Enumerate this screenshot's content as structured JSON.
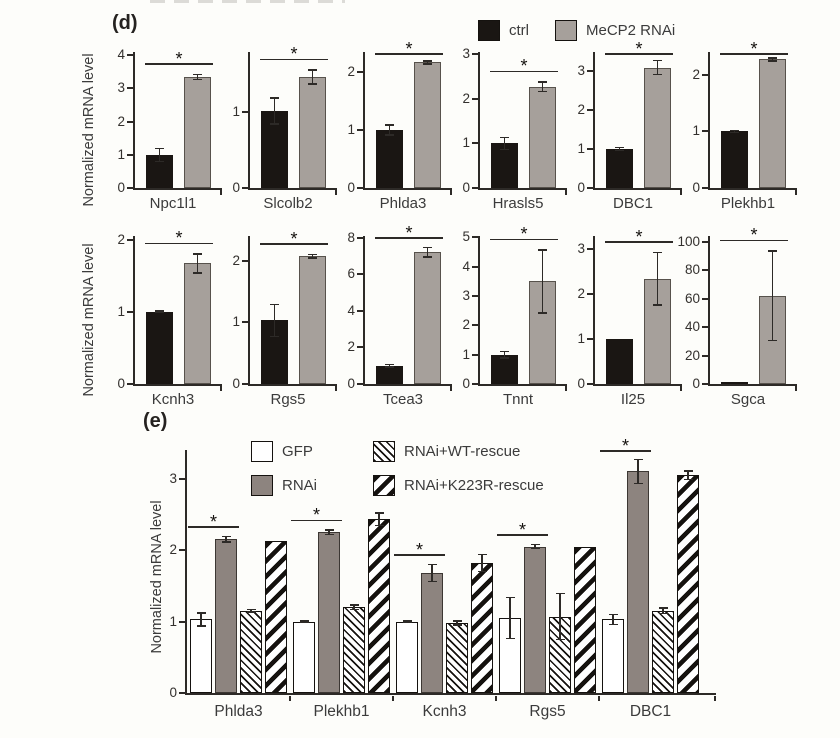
{
  "sig_marker": "*",
  "colors": {
    "black_bar": "#1a1613",
    "gray_bar_panel_d": "#a6a09b",
    "gray_bar_panel_e": "#8d847f",
    "axis": "#2d2a27",
    "text": "#3b3b3b",
    "background": "#fdfdfa"
  },
  "panel_d": {
    "label": "(d)",
    "ylabel": "Normalized mRNA level",
    "legend": [
      {
        "label": "ctrl",
        "swatch": "black"
      },
      {
        "label": "MeCP2 RNAi",
        "swatch": "gray"
      }
    ]
  },
  "panel_e": {
    "label": "(e)",
    "ylabel": "Normalized mRNA level",
    "legend": [
      {
        "label": "GFP",
        "swatch": "white"
      },
      {
        "label": "RNAi",
        "swatch": "gray-e"
      },
      {
        "label": "RNAi+WT-rescue",
        "swatch": "hatch-thin"
      },
      {
        "label": "RNAi+K223R-rescue",
        "swatch": "hatch-thick"
      }
    ]
  },
  "chart_data": [
    {
      "type": "bar",
      "panel": "d",
      "xlabel": "Npc1l1",
      "categories": [
        "ctrl",
        "MeCP2 RNAi"
      ],
      "values": [
        1.0,
        3.35
      ],
      "errors": [
        0.22,
        0.1
      ],
      "ylim": [
        0,
        4.1
      ],
      "yticks": [
        0,
        1,
        2,
        3,
        4
      ],
      "significance": "*"
    },
    {
      "type": "bar",
      "panel": "d",
      "xlabel": "Slcolb2",
      "categories": [
        "ctrl",
        "MeCP2 RNAi"
      ],
      "values": [
        1.02,
        1.47
      ],
      "errors": [
        0.18,
        0.1
      ],
      "ylim": [
        0,
        1.8
      ],
      "yticks": [
        0,
        1
      ],
      "significance": "*"
    },
    {
      "type": "bar",
      "panel": "d",
      "xlabel": "Phlda3",
      "categories": [
        "ctrl",
        "MeCP2 RNAi"
      ],
      "values": [
        1.0,
        2.17
      ],
      "errors": [
        0.1,
        0.04
      ],
      "ylim": [
        0,
        2.35
      ],
      "yticks": [
        0,
        1,
        2
      ],
      "significance": "*"
    },
    {
      "type": "bar",
      "panel": "d",
      "xlabel": "Hrasls5",
      "categories": [
        "ctrl",
        "MeCP2 RNAi"
      ],
      "values": [
        1.0,
        2.27
      ],
      "errors": [
        0.15,
        0.12
      ],
      "ylim": [
        0,
        3.05
      ],
      "yticks": [
        0,
        1,
        2,
        3
      ],
      "significance": "*"
    },
    {
      "type": "bar",
      "panel": "d",
      "xlabel": "DBC1",
      "categories": [
        "ctrl",
        "MeCP2 RNAi"
      ],
      "values": [
        1.0,
        3.1
      ],
      "errors": [
        0.06,
        0.2
      ],
      "ylim": [
        0,
        3.5
      ],
      "yticks": [
        0,
        1,
        2,
        3
      ],
      "significance": "*"
    },
    {
      "type": "bar",
      "panel": "d",
      "xlabel": "Plekhb1",
      "categories": [
        "ctrl",
        "MeCP2 RNAi"
      ],
      "values": [
        1.0,
        2.27
      ],
      "errors": [
        0.03,
        0.04
      ],
      "ylim": [
        0,
        2.4
      ],
      "yticks": [
        0,
        1,
        2
      ],
      "significance": "*"
    },
    {
      "type": "bar",
      "panel": "d",
      "xlabel": "Kcnh3",
      "categories": [
        "ctrl",
        "MeCP2 RNAi"
      ],
      "values": [
        1.0,
        1.67
      ],
      "errors": [
        0.02,
        0.14
      ],
      "ylim": [
        0,
        2.05
      ],
      "yticks": [
        0,
        1,
        2
      ],
      "significance": "*"
    },
    {
      "type": "bar",
      "panel": "d",
      "xlabel": "Rgs5",
      "categories": [
        "ctrl",
        "MeCP2 RNAi"
      ],
      "values": [
        1.03,
        2.07
      ],
      "errors": [
        0.27,
        0.04
      ],
      "ylim": [
        0,
        2.4
      ],
      "yticks": [
        0,
        1,
        2
      ],
      "significance": "*"
    },
    {
      "type": "bar",
      "panel": "d",
      "xlabel": "Tcea3",
      "categories": [
        "ctrl",
        "MeCP2 RNAi"
      ],
      "values": [
        1.0,
        7.2
      ],
      "errors": [
        0.1,
        0.3
      ],
      "ylim": [
        0,
        8.1
      ],
      "yticks": [
        0,
        2,
        4,
        6,
        8
      ],
      "significance": "*"
    },
    {
      "type": "bar",
      "panel": "d",
      "xlabel": "Tnnt",
      "categories": [
        "ctrl",
        "MeCP2 RNAi"
      ],
      "values": [
        1.0,
        3.5
      ],
      "errors": [
        0.13,
        1.1
      ],
      "ylim": [
        0,
        5.05
      ],
      "yticks": [
        0,
        1,
        2,
        3,
        4,
        5
      ],
      "significance": "*"
    },
    {
      "type": "bar",
      "panel": "d",
      "xlabel": "Il25",
      "categories": [
        "ctrl",
        "MeCP2 RNAi"
      ],
      "values": [
        1.0,
        2.35
      ],
      "errors": [
        0,
        0.6
      ],
      "ylim": [
        0,
        3.3
      ],
      "yticks": [
        0,
        1,
        2,
        3
      ],
      "significance": "*"
    },
    {
      "type": "bar",
      "panel": "d",
      "xlabel": "Sgca",
      "categories": [
        "ctrl",
        "MeCP2 RNAi"
      ],
      "values": [
        1,
        62
      ],
      "errors": [
        0,
        32
      ],
      "ylim": [
        0,
        104
      ],
      "yticks": [
        0,
        20,
        40,
        60,
        80,
        100
      ],
      "significance": "*"
    },
    {
      "type": "bar",
      "panel": "e",
      "categories": [
        "Phlda3",
        "Plekhb1",
        "Kcnh3",
        "Rgs5",
        "DBC1"
      ],
      "series": [
        {
          "name": "GFP",
          "fill": "white",
          "values": [
            1.03,
            1.0,
            1.0,
            1.05,
            1.03
          ],
          "errors": [
            0.1,
            0.02,
            0.02,
            0.3,
            0.08
          ]
        },
        {
          "name": "RNAi",
          "fill": "gray-e",
          "values": [
            2.15,
            2.25,
            1.68,
            2.05,
            3.1
          ],
          "errors": [
            0.05,
            0.04,
            0.13,
            0.04,
            0.18
          ]
        },
        {
          "name": "RNAi+WT-rescue",
          "fill": "hatch-thin",
          "values": [
            1.15,
            1.2,
            0.98,
            1.07,
            1.15
          ],
          "errors": [
            0.03,
            0.04,
            0.04,
            0.33,
            0.05
          ]
        },
        {
          "name": "RNAi+K223R-rescue",
          "fill": "hatch-thick",
          "values": [
            2.13,
            2.43,
            1.82,
            2.05,
            3.05
          ],
          "errors": [
            0,
            0.1,
            0.13,
            0,
            0.07
          ]
        }
      ],
      "ylim": [
        0,
        3.4
      ],
      "yticks": [
        0,
        1,
        2,
        3
      ],
      "significance": [
        "*",
        "*",
        "*",
        "*",
        "*"
      ],
      "significance_between": [
        "GFP",
        "RNAi"
      ],
      "ylabel": "Normalized mRNA level",
      "legend_position": "top"
    }
  ]
}
